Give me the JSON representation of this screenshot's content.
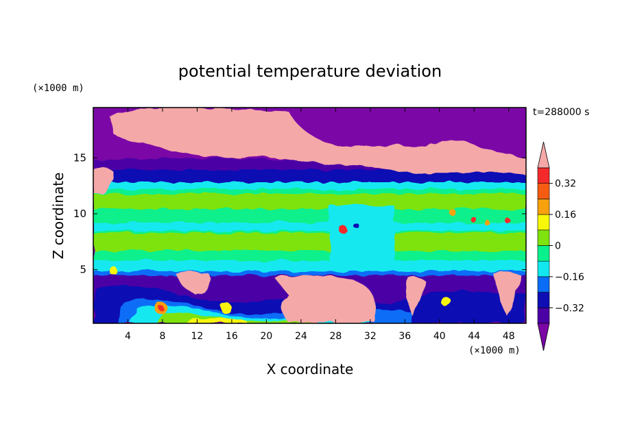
{
  "chart_data": {
    "type": "heatmap",
    "title": "potential temperature deviation",
    "xlabel": "X coordinate",
    "ylabel": "Z coordinate",
    "x_unit": "(×1000 m)",
    "y_unit": "(×1000 m)",
    "time_label": "t=288000 s",
    "xlim": [
      0,
      50
    ],
    "ylim": [
      0.2,
      19.5
    ],
    "x_ticks": [
      4,
      8,
      12,
      16,
      20,
      24,
      28,
      32,
      36,
      40,
      44,
      48
    ],
    "y_ticks": [
      5,
      10,
      15
    ],
    "colorbar": {
      "levels": [
        -0.4,
        -0.32,
        -0.24,
        -0.16,
        -0.08,
        0,
        0.08,
        0.16,
        0.24,
        0.32,
        0.4
      ],
      "tick_values": [
        0.32,
        0.16,
        0,
        -0.16,
        -0.32
      ],
      "tick_labels": [
        "0.32",
        "0.16",
        "0",
        "−0.16",
        "−0.32"
      ],
      "colors": [
        "#7b08a6",
        "#4b00a6",
        "#0e0eb4",
        "#0a6df7",
        "#13e8f0",
        "#0af08c",
        "#7ee30e",
        "#f7f70a",
        "#f7a10e",
        "#f55c12",
        "#f42a2a",
        "#f5a8a8"
      ],
      "extend": "both"
    }
  }
}
